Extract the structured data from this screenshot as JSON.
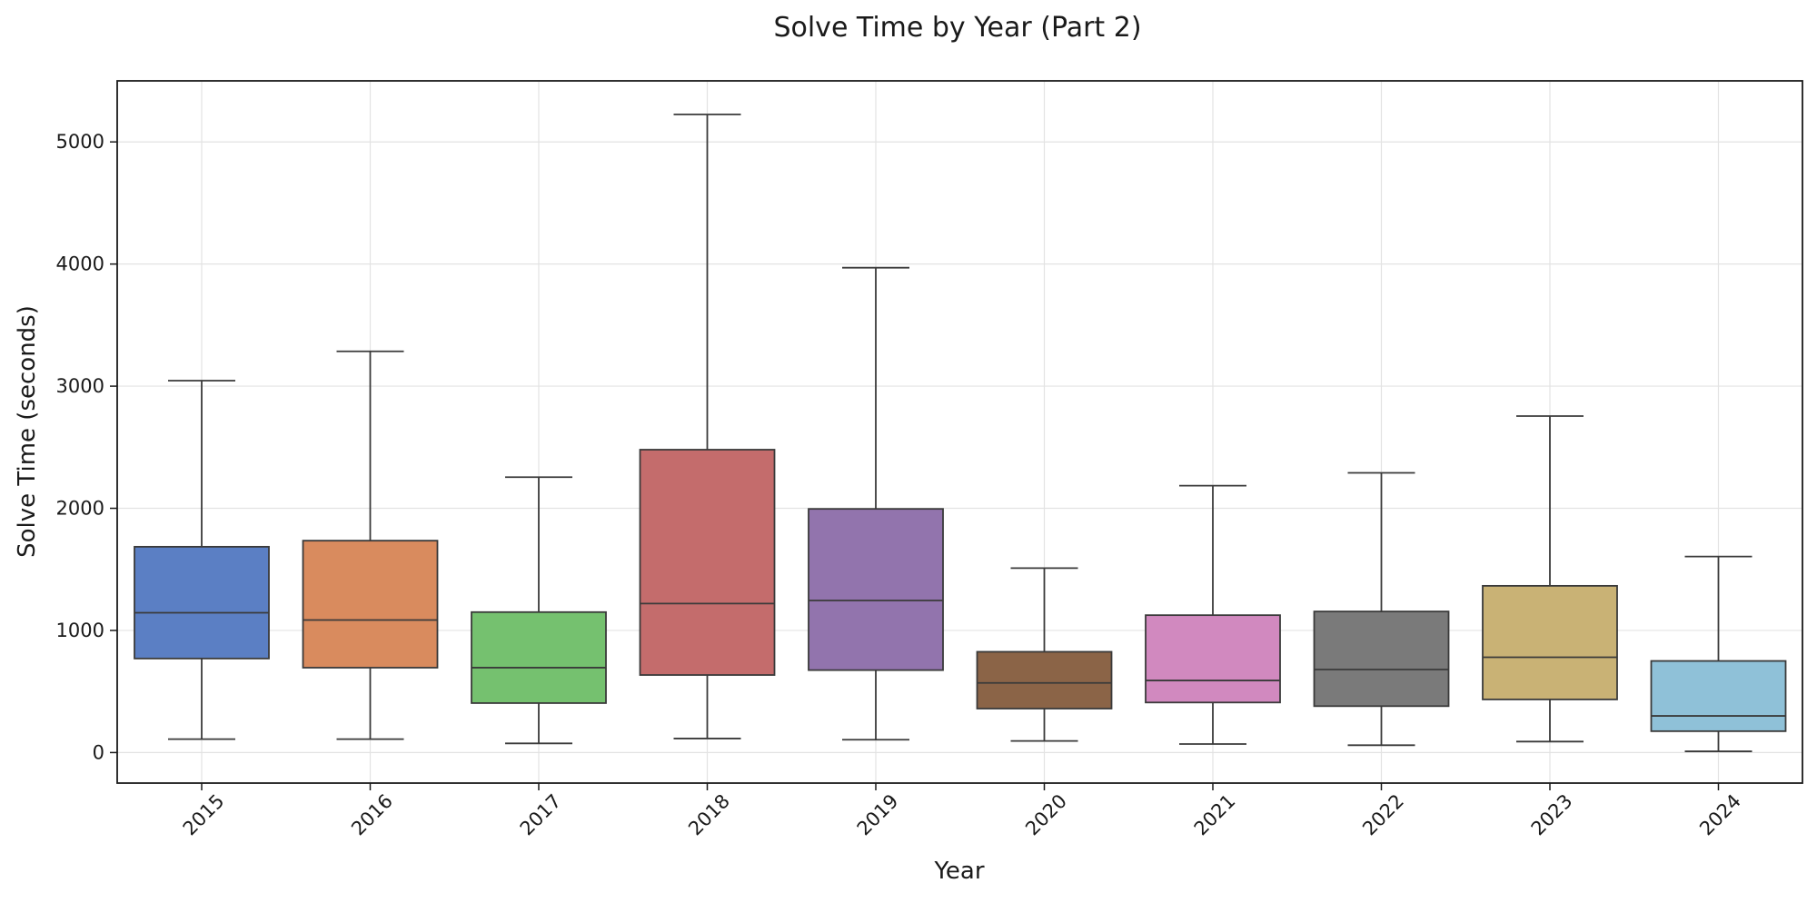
{
  "chart_data": {
    "type": "boxplot",
    "title": "Solve Time by Year (Part 2)",
    "xlabel": "Year",
    "ylabel": "Solve Time (seconds)",
    "ylim": [
      -250,
      5500
    ],
    "yticks": [
      0,
      1000,
      2000,
      3000,
      4000,
      5000
    ],
    "grid": true,
    "categories": [
      "2015",
      "2016",
      "2017",
      "2018",
      "2019",
      "2020",
      "2021",
      "2022",
      "2023",
      "2024"
    ],
    "boxes": [
      {
        "category": "2015",
        "whisker_low": 110,
        "q1": 770,
        "median": 1145,
        "q3": 1685,
        "whisker_high": 3045,
        "color": "#5b7fc4"
      },
      {
        "category": "2016",
        "whisker_low": 110,
        "q1": 695,
        "median": 1085,
        "q3": 1735,
        "whisker_high": 3285,
        "color": "#d98b5e"
      },
      {
        "category": "2017",
        "whisker_low": 75,
        "q1": 405,
        "median": 695,
        "q3": 1150,
        "whisker_high": 2255,
        "color": "#75c16f"
      },
      {
        "category": "2018",
        "whisker_low": 115,
        "q1": 635,
        "median": 1220,
        "q3": 2480,
        "whisker_high": 5225,
        "color": "#c46c6c"
      },
      {
        "category": "2019",
        "whisker_low": 105,
        "q1": 675,
        "median": 1245,
        "q3": 1995,
        "whisker_high": 3970,
        "color": "#9274ad"
      },
      {
        "category": "2020",
        "whisker_low": 95,
        "q1": 360,
        "median": 570,
        "q3": 825,
        "whisker_high": 1510,
        "color": "#8b6447"
      },
      {
        "category": "2021",
        "whisker_low": 70,
        "q1": 410,
        "median": 590,
        "q3": 1125,
        "whisker_high": 2185,
        "color": "#d189bf"
      },
      {
        "category": "2022",
        "whisker_low": 60,
        "q1": 380,
        "median": 680,
        "q3": 1155,
        "whisker_high": 2290,
        "color": "#7a7a7a"
      },
      {
        "category": "2023",
        "whisker_low": 90,
        "q1": 435,
        "median": 780,
        "q3": 1365,
        "whisker_high": 2755,
        "color": "#c9b275"
      },
      {
        "category": "2024",
        "whisker_low": 10,
        "q1": 175,
        "median": 300,
        "q3": 750,
        "whisker_high": 1605,
        "color": "#8fc1d8"
      }
    ]
  }
}
